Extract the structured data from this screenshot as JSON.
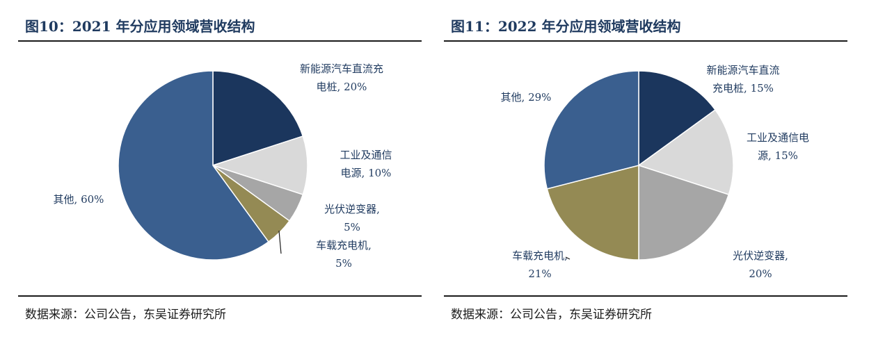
{
  "charts": [
    {
      "title": "图10：2021 年分应用领域营收结构",
      "source": "数据来源：公司公告，东吴证券研究所"
    },
    {
      "title": "图11：2022 年分应用领域营收结构",
      "source": "数据来源：公司公告，东吴证券研究所"
    }
  ],
  "chart_data": [
    {
      "type": "pie",
      "title": "图10：2021 年分应用领域营收结构",
      "slices": [
        {
          "label_lines": [
            "新能源汽车直流充",
            "电桩, 20%"
          ],
          "value": 20,
          "color": "#1b365d"
        },
        {
          "label_lines": [
            "工业及通信",
            "电源, 10%"
          ],
          "value": 10,
          "color": "#d9d9d9"
        },
        {
          "label_lines": [
            "光伏逆变器,",
            "5%"
          ],
          "value": 5,
          "color": "#a6a6a6"
        },
        {
          "label_lines": [
            "车载充电机,",
            "5%"
          ],
          "value": 5,
          "color": "#948a54"
        },
        {
          "label_lines": [
            "其他, 60%"
          ],
          "value": 60,
          "color": "#3a5f8f"
        }
      ]
    },
    {
      "type": "pie",
      "title": "图11：2022 年分应用领域营收结构",
      "slices": [
        {
          "label_lines": [
            "新能源汽车直流",
            "充电桩, 15%"
          ],
          "value": 15,
          "color": "#1b365d"
        },
        {
          "label_lines": [
            "工业及通信电",
            "源, 15%"
          ],
          "value": 15,
          "color": "#d9d9d9"
        },
        {
          "label_lines": [
            "光伏逆变器,",
            "20%"
          ],
          "value": 20,
          "color": "#a6a6a6"
        },
        {
          "label_lines": [
            "车载充电机,",
            "21%"
          ],
          "value": 21,
          "color": "#948a54"
        },
        {
          "label_lines": [
            "其他, 29%"
          ],
          "value": 29,
          "color": "#3a5f8f"
        }
      ]
    }
  ]
}
